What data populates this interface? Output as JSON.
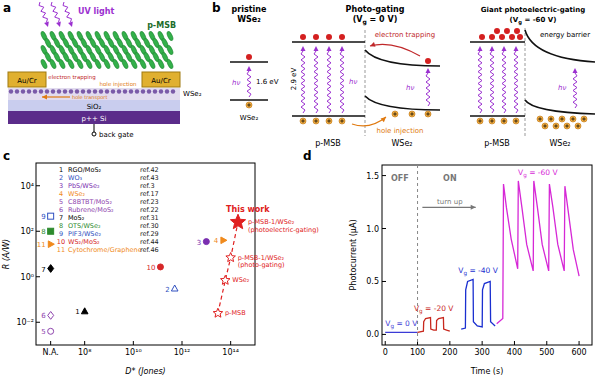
{
  "figure": {
    "a": {
      "label": "a",
      "light": "UV light",
      "layer_top": "p-MSB",
      "electrode_left": "Au/Cr",
      "electrode_right": "Au/Cr",
      "electron": "electron trapping",
      "hole": "hole injection",
      "channel": "WSe₂",
      "transport": "hole transport",
      "oxide": "SiO₂",
      "substrate": "p++ Si",
      "gate": "back gate"
    },
    "b": {
      "label": "b",
      "pristine": {
        "title": "pristine",
        "title2": "WSe₂",
        "photon": "hν",
        "gap": "1.6 eV",
        "material": "WSe₂"
      },
      "photo": {
        "title": "Photo-gating",
        "condition": "(Vg = 0 V)",
        "photon": "hν",
        "gap": "2.9 eV",
        "electron": "electron trapping",
        "hole": "hole injection",
        "left": "p-MSB",
        "right": "WSe₂"
      },
      "giant": {
        "title": "Giant photoelectric-gating",
        "condition": "(Vg = -60 V)",
        "photon": "hν",
        "barrier": "energy barrier",
        "left": "p-MSB",
        "right": "WSe₂"
      }
    }
  },
  "chart_data": [
    {
      "panel": "c",
      "type": "scatter",
      "log": true,
      "grid": false,
      "legend": "upper left",
      "x_label": "D* (Jones)",
      "y_label": "R (A/W)",
      "xlim": [
        1000000.0,
        1000000000000000.0
      ],
      "ylim": [
        0.001,
        100000
      ],
      "xticks": [
        {
          "value": 4000000.0,
          "label": "N.A."
        },
        {
          "value": 100000000.0,
          "label": "10⁸"
        },
        {
          "value": 10000000000.0,
          "label": "10¹⁰"
        },
        {
          "value": 1000000000000.0,
          "label": "10¹²"
        },
        {
          "value": 100000000000000.0,
          "label": "10¹⁴"
        }
      ],
      "yticks": [
        {
          "value": 0.01,
          "label": "10⁻²"
        },
        {
          "value": 1,
          "label": "10⁰"
        },
        {
          "value": 100,
          "label": "10²"
        },
        {
          "value": 10000,
          "label": "10⁴"
        }
      ],
      "series": [
        {
          "label": "1",
          "name": "RGO/MoS₂",
          "ref": "ref.42",
          "color": "#000000",
          "marker": "triangle",
          "x": [
            100000000.0
          ],
          "values": [
            0.03
          ]
        },
        {
          "label": "2",
          "name": "WO₃",
          "ref": "ref.43",
          "color": "#3050c0",
          "marker": "triangle-open",
          "x": [
            500000000000.0
          ],
          "values": [
            0.3
          ]
        },
        {
          "label": "3",
          "name": "PbS/WSe₂",
          "ref": "ref.3",
          "color": "#7a2fb0",
          "marker": "circle",
          "x": [
            10000000000000.0
          ],
          "values": [
            35
          ]
        },
        {
          "label": "4",
          "name": "WSe₂",
          "ref": "ref.17",
          "color": "#f08a1c",
          "marker": "triangle-right",
          "x": [
            50000000000000.0
          ],
          "values": [
            40
          ]
        },
        {
          "label": "5",
          "name": "C8BTBT/MoS₂",
          "ref": "ref.23",
          "color": "#8e44ad",
          "marker": "circle-open",
          "x": [
            4000000.0
          ],
          "values": [
            0.004
          ]
        },
        {
          "label": "6",
          "name": "Rubrene/MoS₂",
          "ref": "ref.22",
          "color": "#8e44ad",
          "marker": "diamond-open",
          "x": [
            4000000.0
          ],
          "values": [
            0.02
          ]
        },
        {
          "label": "7",
          "name": "MoS₂",
          "ref": "ref.31",
          "color": "#000000",
          "marker": "diamond",
          "x": [
            4000000.0
          ],
          "values": [
            2.3
          ]
        },
        {
          "label": "8",
          "name": "OTS/WSe₂",
          "ref": "ref.30",
          "color": "#2e8b2e",
          "marker": "square",
          "x": [
            4000000.0
          ],
          "values": [
            100
          ]
        },
        {
          "label": "9",
          "name": "PIF3/WSe₂",
          "ref": "ref.29",
          "color": "#3050c0",
          "marker": "square-open",
          "x": [
            4000000.0
          ],
          "values": [
            460
          ]
        },
        {
          "label": "10",
          "name": "WS₂/MoS₂",
          "ref": "ref.44",
          "color": "#d62728",
          "marker": "circle",
          "x": [
            130000000000.0
          ],
          "values": [
            2.7
          ]
        },
        {
          "label": "11",
          "name": "Cytochrome/Graphene",
          "ref": "ref.46",
          "color": "#f08a1c",
          "marker": "triangle-right",
          "x": [
            4000000.0
          ],
          "values": [
            27
          ]
        }
      ],
      "this_work": {
        "name": "This work",
        "color": "#e02020",
        "marker": "star",
        "line_style": "dashed",
        "x": [
          30000000000000.0,
          60000000000000.0,
          100000000000000.0,
          200000000000000.0
        ],
        "values": [
          0.025,
          0.7,
          7,
          250
        ],
        "point_labels": [
          "p-MSB",
          "WSe₂",
          "p-MSB-1/WSe₂ (photo-gating)",
          "p-MSB-1/WSe₂ (photoelectric-gating)"
        ]
      }
    },
    {
      "panel": "d",
      "type": "line",
      "grid": false,
      "x_label": "Time (s)",
      "y_label": "Photocurrent (μA)",
      "xlim": [
        -10,
        640
      ],
      "ylim": [
        -0.1,
        1.6
      ],
      "xticks": [
        0,
        100,
        200,
        300,
        400,
        500,
        600
      ],
      "yticks": [
        {
          "value": 0,
          "label": "0.0"
        },
        0.5,
        {
          "value": 1,
          "label": "1.0"
        },
        1.5
      ],
      "on_time": 100,
      "annotations": {
        "off": "OFF",
        "on": "ON",
        "turn_up": "turn up"
      },
      "series": [
        {
          "name": "Vg = 0 V",
          "color": "#3b3bd6",
          "x": [
            0,
            20,
            40,
            60,
            80,
            100
          ],
          "values": [
            0.02,
            0.02,
            0.02,
            0.02,
            0.02,
            0.02
          ]
        },
        {
          "name": "Vg = -20 V",
          "color": "#c8281e",
          "x": [
            100,
            118,
            119,
            125,
            140,
            141,
            150,
            158,
            159,
            165,
            180,
            181,
            190,
            200
          ],
          "values": [
            0.02,
            0.03,
            0.12,
            0.15,
            0.16,
            0.05,
            0.04,
            0.04,
            0.13,
            0.15,
            0.16,
            0.05,
            0.04,
            0.03
          ]
        },
        {
          "name": "Vg = -40 V",
          "color": "#1a2fd0",
          "x": [
            235,
            248,
            249,
            255,
            272,
            273,
            285,
            300,
            301,
            307,
            325,
            326,
            340
          ],
          "values": [
            0.05,
            0.06,
            0.42,
            0.5,
            0.52,
            0.12,
            0.08,
            0.07,
            0.42,
            0.48,
            0.5,
            0.12,
            0.08
          ]
        },
        {
          "name": "Vg = -60 V",
          "color": "#d628d6",
          "x": [
            345,
            364,
            366,
            375,
            390,
            410,
            412,
            423,
            438,
            458,
            460,
            471,
            486,
            506,
            508,
            519,
            534,
            554,
            556,
            567,
            582,
            600
          ],
          "values": [
            0.1,
            0.15,
            1.42,
            1.2,
            0.9,
            0.62,
            1.45,
            1.2,
            0.85,
            0.6,
            1.45,
            1.2,
            0.85,
            0.6,
            1.42,
            1.2,
            0.85,
            0.6,
            1.4,
            1.15,
            0.8,
            0.55
          ]
        }
      ]
    }
  ]
}
